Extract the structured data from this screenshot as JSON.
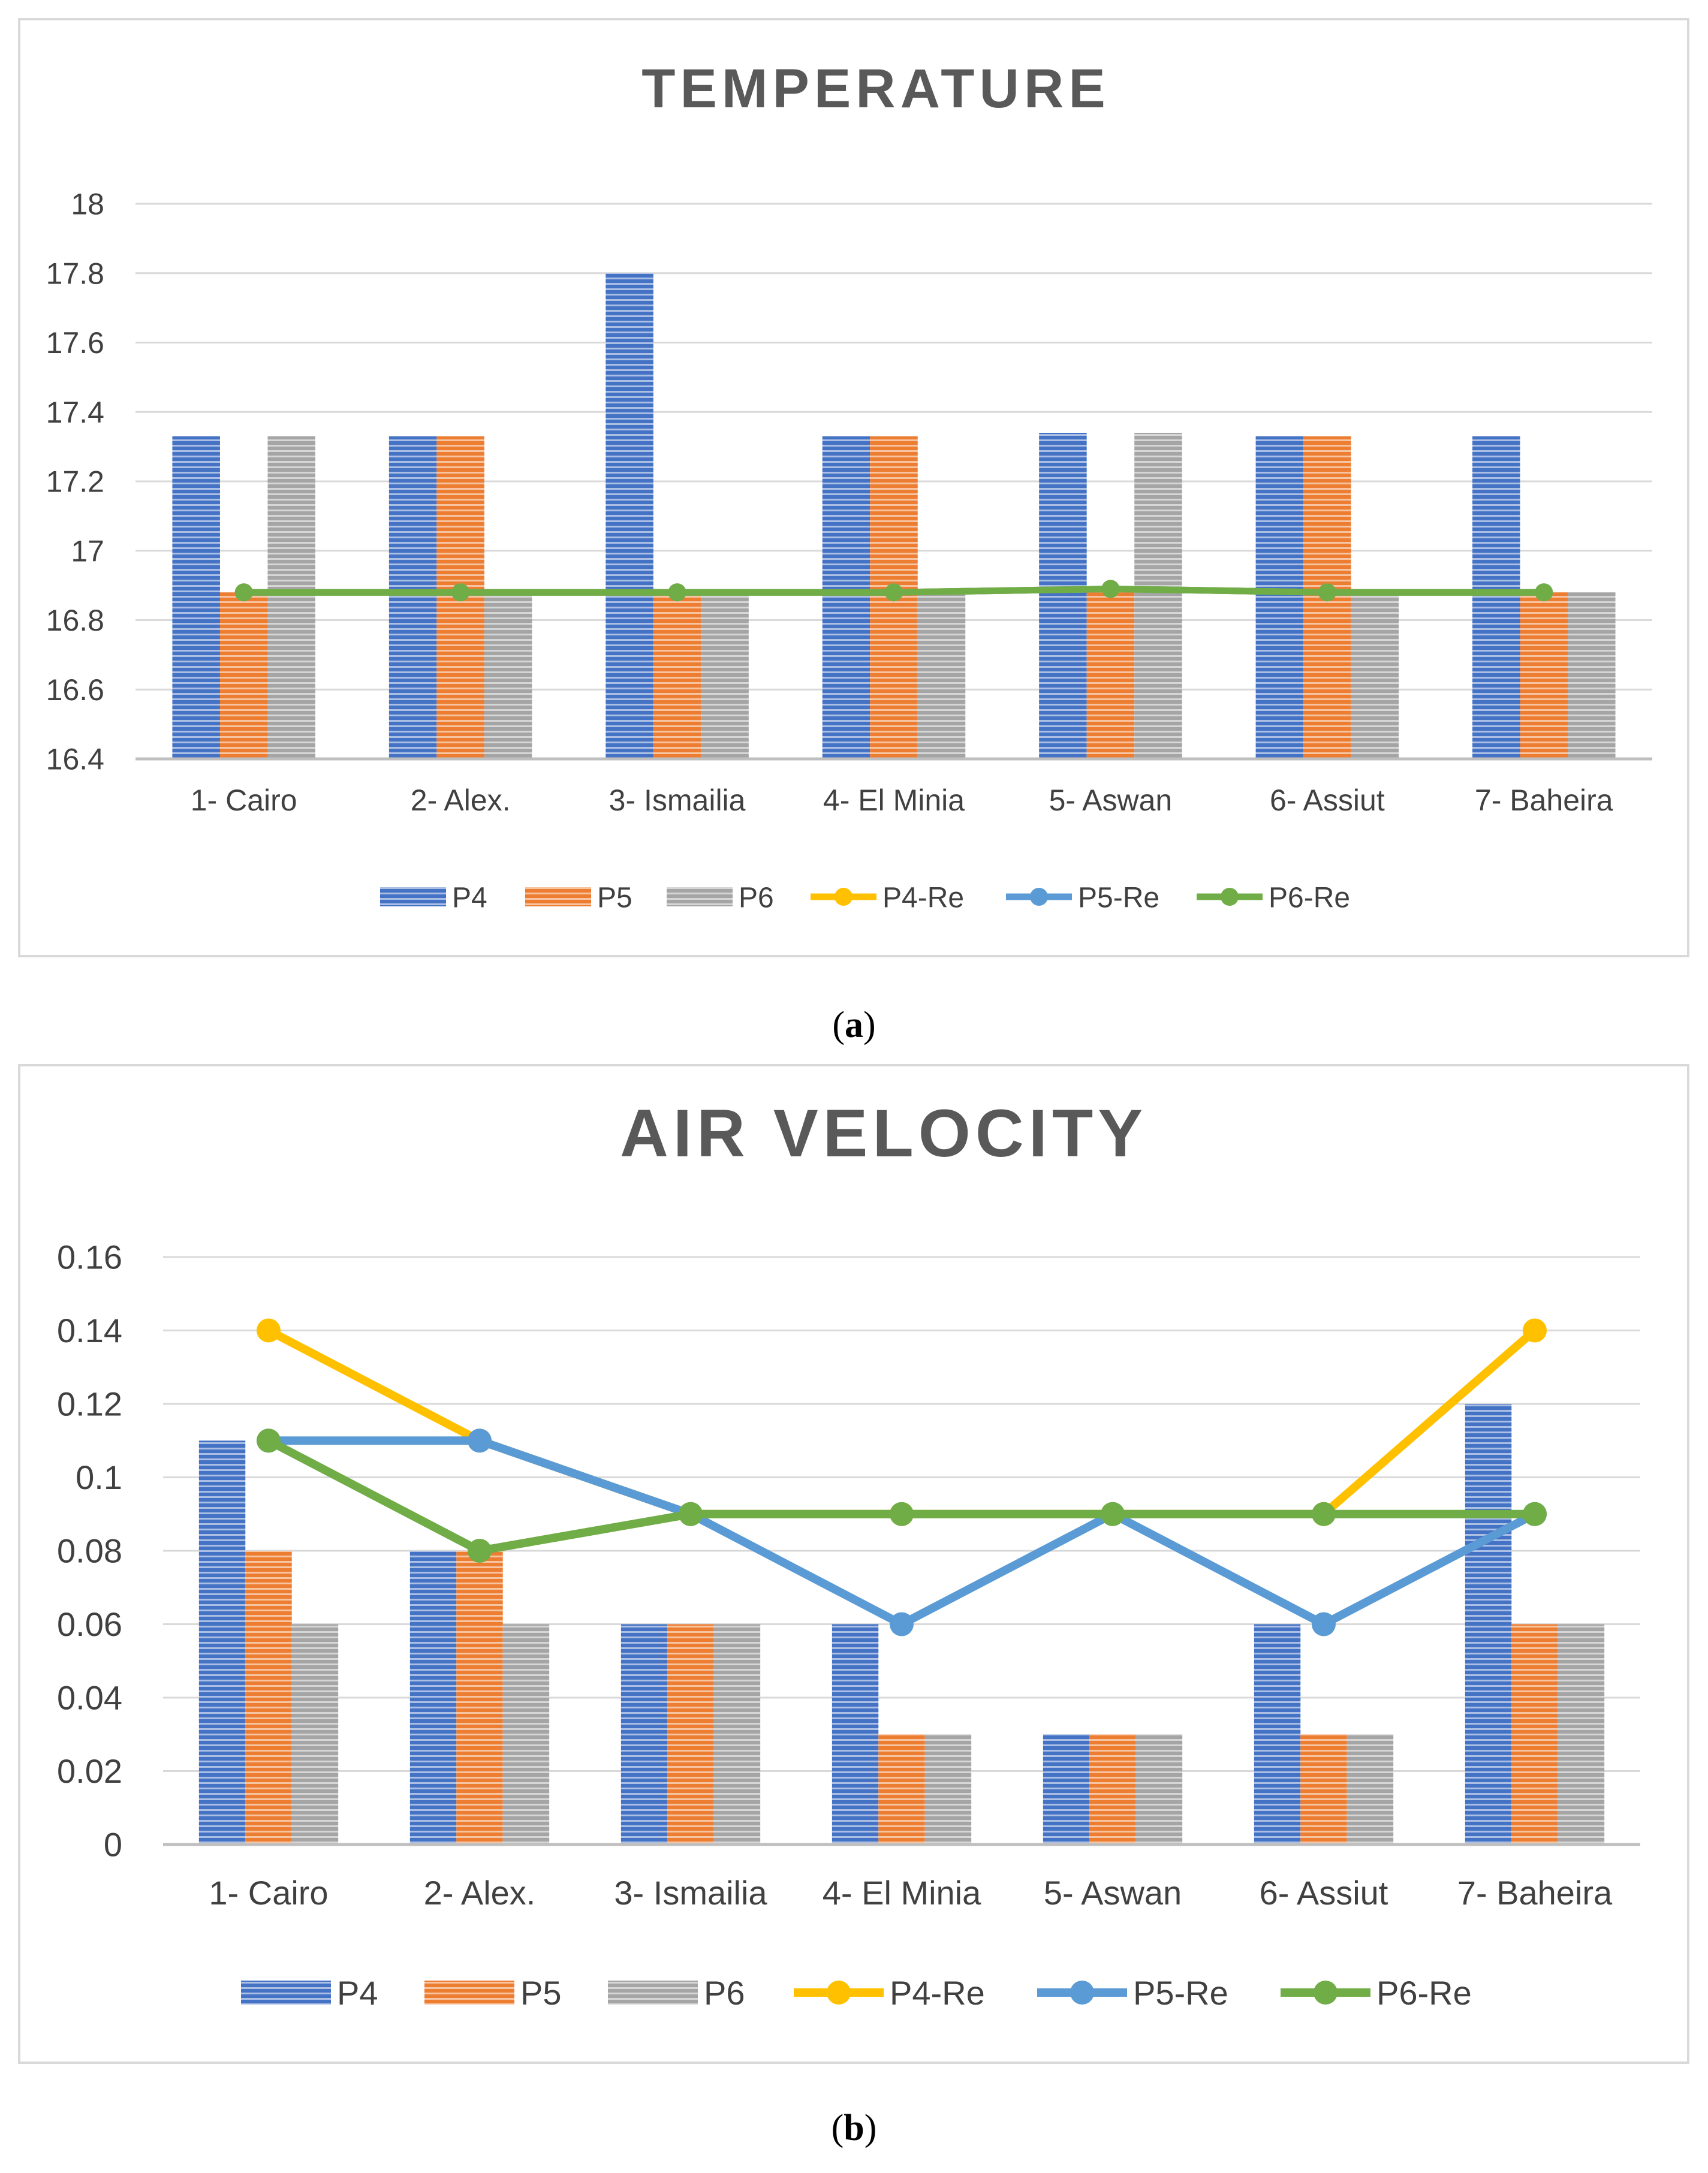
{
  "charts": [
    {
      "caption_letter": "a",
      "chart_data": {
        "type": "bar",
        "title": "TEMPERATURE",
        "xlabel": "",
        "ylabel": "",
        "categories": [
          "1- Cairo",
          "2- Alex.",
          "3- Ismailia",
          "4- El Minia",
          "5- Aswan",
          "6- Assiut",
          "7- Baheira"
        ],
        "ylim": [
          16.4,
          18
        ],
        "yticks": [
          "16.4",
          "16.6",
          "16.8",
          "17",
          "17.2",
          "17.4",
          "17.6",
          "17.8",
          "18"
        ],
        "ytick_values": [
          16.4,
          16.6,
          16.8,
          17,
          17.2,
          17.4,
          17.6,
          17.8,
          18
        ],
        "grid": true,
        "legend_position": "bottom",
        "series": [
          {
            "name": "P4",
            "kind": "bar",
            "color": "#4472c4",
            "values": [
              17.33,
              17.33,
              17.8,
              17.33,
              17.34,
              17.33,
              17.33
            ]
          },
          {
            "name": "P5",
            "kind": "bar",
            "color": "#ed7d31",
            "values": [
              16.88,
              17.33,
              16.88,
              17.33,
              16.88,
              17.33,
              16.88
            ]
          },
          {
            "name": "P6",
            "kind": "bar",
            "color": "#a5a5a5",
            "values": [
              17.33,
              16.88,
              16.88,
              16.88,
              17.34,
              16.88,
              16.88
            ]
          },
          {
            "name": "P4-Re",
            "kind": "line",
            "color": "#ffc000",
            "values": [
              16.88,
              16.88,
              16.88,
              16.88,
              16.89,
              16.88,
              16.88
            ]
          },
          {
            "name": "P5-Re",
            "kind": "line",
            "color": "#5b9bd5",
            "values": [
              16.88,
              16.88,
              16.88,
              16.88,
              16.89,
              16.88,
              16.88
            ]
          },
          {
            "name": "P6-Re",
            "kind": "line",
            "color": "#70ad47",
            "values": [
              16.88,
              16.88,
              16.88,
              16.88,
              16.89,
              16.88,
              16.88
            ]
          }
        ]
      }
    },
    {
      "caption_letter": "b",
      "chart_data": {
        "type": "bar",
        "title": "AIR VELOCITY",
        "xlabel": "",
        "ylabel": "",
        "categories": [
          "1- Cairo",
          "2- Alex.",
          "3- Ismailia",
          "4- El Minia",
          "5- Aswan",
          "6- Assiut",
          "7- Baheira"
        ],
        "ylim": [
          0,
          0.16
        ],
        "yticks": [
          "0",
          "0.02",
          "0.04",
          "0.06",
          "0.08",
          "0.1",
          "0.12",
          "0.14",
          "0.16"
        ],
        "ytick_values": [
          0,
          0.02,
          0.04,
          0.06,
          0.08,
          0.1,
          0.12,
          0.14,
          0.16
        ],
        "grid": true,
        "legend_position": "bottom",
        "series": [
          {
            "name": "P4",
            "kind": "bar",
            "color": "#4472c4",
            "values": [
              0.11,
              0.08,
              0.06,
              0.06,
              0.03,
              0.06,
              0.12
            ]
          },
          {
            "name": "P5",
            "kind": "bar",
            "color": "#ed7d31",
            "values": [
              0.08,
              0.08,
              0.06,
              0.03,
              0.03,
              0.03,
              0.06
            ]
          },
          {
            "name": "P6",
            "kind": "bar",
            "color": "#a5a5a5",
            "values": [
              0.06,
              0.06,
              0.06,
              0.03,
              0.03,
              0.03,
              0.06
            ]
          },
          {
            "name": "P4-Re",
            "kind": "line",
            "color": "#ffc000",
            "values": [
              0.14,
              0.11,
              0.09,
              0.09,
              0.09,
              0.09,
              0.14
            ]
          },
          {
            "name": "P5-Re",
            "kind": "line",
            "color": "#5b9bd5",
            "values": [
              0.11,
              0.11,
              0.09,
              0.06,
              0.09,
              0.06,
              0.09
            ]
          },
          {
            "name": "P6-Re",
            "kind": "line",
            "color": "#70ad47",
            "values": [
              0.11,
              0.08,
              0.09,
              0.09,
              0.09,
              0.09,
              0.09
            ]
          }
        ]
      }
    }
  ]
}
